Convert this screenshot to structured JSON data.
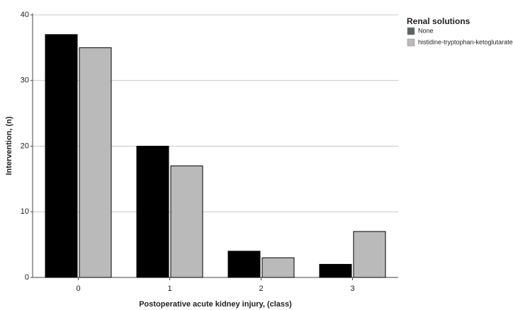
{
  "chart_data": {
    "type": "bar",
    "x_label": "Postoperative acute kidney injury, (class)",
    "y_label": "Intervention, (n)",
    "legend_title": "Renal solutions",
    "legend_position": "right",
    "categories": [
      "0",
      "1",
      "2",
      "3"
    ],
    "series": [
      {
        "name": "None",
        "color": "#000000",
        "legend_color": "#5b6660",
        "values": [
          37,
          20,
          4,
          2
        ]
      },
      {
        "name": "histidine-tryptophan-ketoglutarate",
        "color": "#bababa",
        "legend_color": "#bababa",
        "values": [
          35,
          17,
          3,
          7
        ]
      }
    ],
    "ylim": [
      0,
      40
    ],
    "yticks": [
      0,
      10,
      20,
      30,
      40
    ],
    "grid": true
  }
}
